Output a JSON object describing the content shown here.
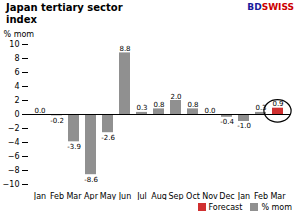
{
  "chart_data": {
    "type": "bar",
    "title": "Japan tertiary sector\nindex",
    "y_label": "% mom",
    "categories": [
      "Jan",
      "Feb",
      "Mar",
      "Apr",
      "May",
      "Jun",
      "Jul",
      "Aug",
      "Sep",
      "Oct",
      "Nov",
      "Dec",
      "Jan",
      "Feb",
      "Mar"
    ],
    "series": [
      {
        "name": "Forecast",
        "color": "#d03030",
        "values": [
          null,
          null,
          null,
          null,
          null,
          null,
          null,
          null,
          null,
          null,
          null,
          null,
          null,
          null,
          0.9
        ],
        "value_labels": [
          null,
          null,
          null,
          null,
          null,
          null,
          null,
          null,
          null,
          null,
          null,
          null,
          null,
          null,
          "0.9"
        ]
      },
      {
        "name": "% mom",
        "color": "#909090",
        "values": [
          0.0,
          -0.2,
          -3.9,
          -8.6,
          -2.6,
          8.8,
          0.3,
          0.8,
          2.0,
          0.8,
          0.0,
          -0.4,
          -1.0,
          0.3,
          null
        ],
        "value_labels": [
          "0.0",
          "-0.2",
          "-3.9",
          "-8.6",
          "-2.6",
          "8.8",
          "0.3",
          "0.8",
          "2.0",
          "0.8",
          "0.0",
          "-0.4",
          "-1.0",
          "0.3",
          null
        ]
      }
    ],
    "ylim": [
      -10,
      10
    ],
    "yticks": [
      -10,
      -8,
      -6,
      -4,
      -2,
      0,
      2,
      4,
      6,
      8,
      10
    ],
    "grid": false,
    "legend": "lower right",
    "data_labels": true,
    "annotations": [
      {
        "text": "BD",
        "color": "#1a1a9c"
      },
      {
        "text": "SWISS",
        "color": "#cc0000"
      }
    ]
  }
}
